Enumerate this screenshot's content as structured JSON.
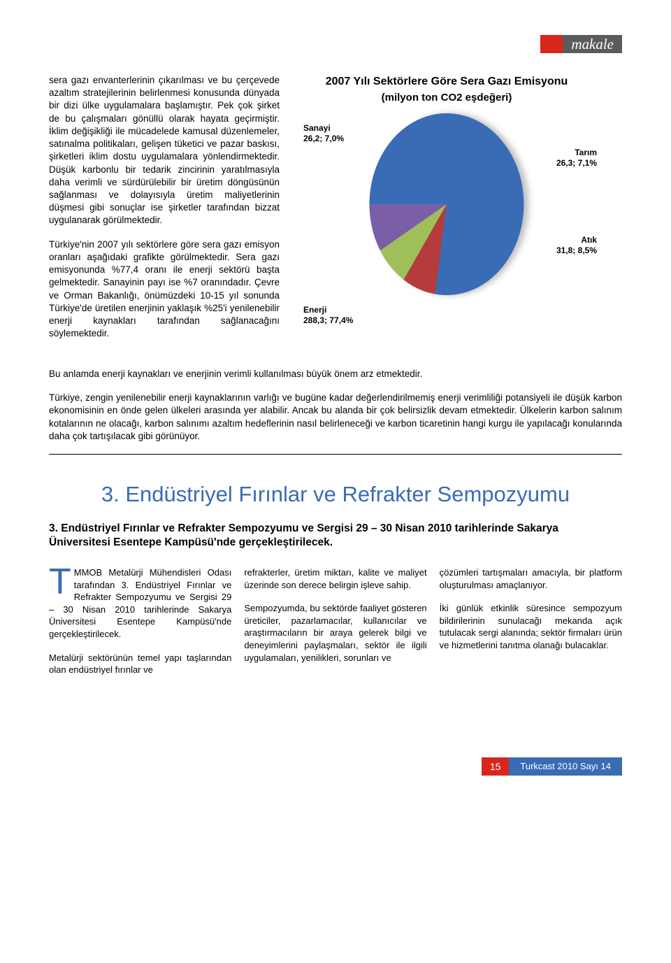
{
  "header": {
    "tag": "makale"
  },
  "article": {
    "p1": "sera gazı envanterlerinin çıkarılması ve bu çerçevede azaltım stratejilerinin belirlenmesi konusunda dünyada bir dizi ülke uygulamalara başlamıştır. Pek çok şirket de bu çalışmaları gönüllü olarak hayata geçirmiştir. İklim değişikliği ile mücadelede kamusal düzenlemeler, satınalma politikaları, gelişen tüketici ve pazar baskısı, şirketleri iklim dostu uygulamalara yönlendirmektedir. Düşük karbonlu bir tedarik zincirinin yaratılmasıyla daha verimli ve sürdürülebilir bir üretim döngüsünün sağlanması ve dolayısıyla üretim maliyetlerinin düşmesi gibi sonuçlar ise şirketler tarafından bizzat uygulanarak görülmektedir.",
    "p2a": "Türkiye'nin 2007 yılı sektörlere göre sera gazı emisyon oranları aşağıdaki grafikte görülmektedir. Sera gazı emisyonunda %77,4 oranı ile enerji sektörü başta gelmektedir. Sanayinin payı ise %7 oranındadır. Çevre ve Orman Bakanlığı, önümüzdeki 10-15 yıl sonunda Türkiye'de üretilen enerjinin yaklaşık %25'i yenilenebilir enerji kaynakları tarafından sağlanacağını söylemektedir.",
    "p2b": "Bu anlamda enerji kaynakları ve enerjinin verimli kullanılması büyük önem arz etmektedir.",
    "p3": "Türkiye, zengin yenilenebilir enerji kaynaklarının varlığı ve bugüne kadar değerlendirilmemiş enerji verimliliği potansiyeli ile düşük karbon ekonomisinin en önde gelen ülkeleri arasında yer alabilir. Ancak bu alanda bir çok belirsizlik devam etmektedir. Ülkelerin karbon salınım kotalarının ne olacağı, karbon salınımı azaltım hedeflerinin nasıl belirleneceği ve karbon ticaretinin hangi kurgu ile yapılacağı konularında daha çok tartışılacak gibi görünüyor."
  },
  "chart": {
    "type": "pie",
    "title": "2007 Yılı Sektörlere Göre Sera Gazı Emisyonu",
    "subtitle": "(milyon ton CO2 eşdeğeri)",
    "slices": [
      {
        "label": "Enerji",
        "value_text": "288,3; 77,4%",
        "pct": 77.4,
        "color": "#3a6cb5"
      },
      {
        "label": "Sanayi",
        "value_text": "26,2; 7,0%",
        "pct": 7.0,
        "color": "#b43c3c"
      },
      {
        "label": "Tarım",
        "value_text": "26,3; 7,1%",
        "pct": 7.1,
        "color": "#9fbf5a"
      },
      {
        "label": "Atık",
        "value_text": "31,8; 8,5%",
        "pct": 8.5,
        "color": "#7a5fa8"
      }
    ],
    "title_fontsize": 16,
    "label_fontsize": 12,
    "background_color": "#ffffff"
  },
  "section": {
    "heading": "3. Endüstriyel Fırınlar ve Refrakter Sempozyumu",
    "subheading": "3. Endüstriyel Fırınlar ve Refrakter Sempozyumu ve Sergisi 29 – 30 Nisan 2010 tarihlerinde Sakarya Üniversitesi Esentepe Kampüsü'nde gerçekleştirilecek.",
    "c1a": "MMOB Metalürji Mühendisleri Odası tarafından 3. Endüstriyel Fırınlar ve Refrakter Sempozyumu ve Sergisi 29 – 30 Nisan 2010 tarihlerinde Sakarya Üniversitesi Esentepe Kampüsü'nde gerçekleştirilecek.",
    "c1b": "Metalürji sektörünün temel yapı taşlarından olan endüstriyel fırınlar ve",
    "c2a": "refrakterler, üretim miktarı, kalite ve maliyet üzerinde son derece belirgin işleve sahip.",
    "c2b": "Sempozyumda, bu sektörde faaliyet gösteren üreticiler, pazarlamacılar, kullanıcılar ve araştırmacıların bir araya gelerek bilgi ve deneyimlerini paylaşmaları, sektör ile ilgili uygulamaları, yenilikleri, sorunları ve",
    "c3a": "çözümleri tartışmaları amacıyla, bir platform oluşturulması amaçlanıyor.",
    "c3b": "İki günlük etkinlik süresince sempozyum bildirilerinin sunulacağı mekanda açık tutulacak sergi alanında; sektör firmaları ürün ve hizmetlerini tanıtma olanağı bulacaklar."
  },
  "footer": {
    "page": "15",
    "issue": "Turkcast 2010 Sayı 14"
  }
}
